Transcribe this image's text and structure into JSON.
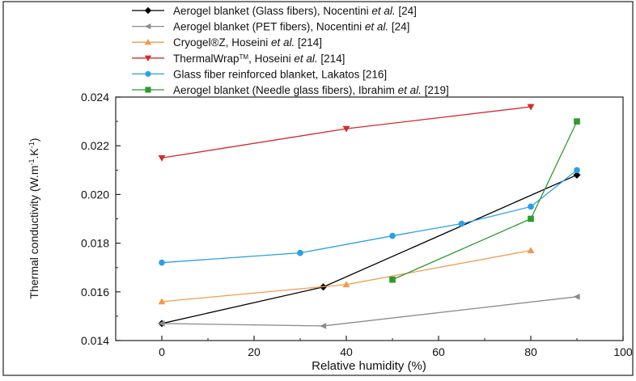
{
  "chart_data": {
    "type": "line",
    "xlabel": "Relative humidity (%)",
    "ylabel": "Thermal conductivity (W.m",
    "ylabel_sup1": "-1",
    "ylabel_mid": ".K",
    "ylabel_sup2": "-1",
    "ylabel_end": ")",
    "xlim": [
      -10,
      100
    ],
    "ylim": [
      0.014,
      0.024
    ],
    "xticks": [
      0,
      20,
      40,
      60,
      80,
      100
    ],
    "xtick_labels": [
      "0",
      "20",
      "40",
      "60",
      "80",
      "100"
    ],
    "yticks": [
      0.014,
      0.016,
      0.018,
      0.02,
      0.022,
      0.024
    ],
    "ytick_labels": [
      "0.014",
      "0.016",
      "0.018",
      "0.020",
      "0.022",
      "0.024"
    ],
    "grid": false,
    "legend_position": "top-left, above plot",
    "series": [
      {
        "name_parts": [
          {
            "t": "Aerogel blanket (Glass fibers), Nocentini "
          },
          {
            "t": "et al.",
            "i": true
          },
          {
            "t": " [24]"
          }
        ],
        "color": "#000000",
        "marker": "diamond",
        "x": [
          0,
          35,
          90
        ],
        "y": [
          0.0147,
          0.0162,
          0.0208
        ]
      },
      {
        "name_parts": [
          {
            "t": "Aerogel blanket (PET fibers), Nocentini "
          },
          {
            "t": "et al.",
            "i": true
          },
          {
            "t": " [24]"
          }
        ],
        "color": "#8c8c8c",
        "marker": "triangle-left",
        "x": [
          0,
          35,
          90
        ],
        "y": [
          0.0147,
          0.0146,
          0.0158
        ]
      },
      {
        "name_parts": [
          {
            "t": "Cryogel®Z, Hoseini "
          },
          {
            "t": "et al.",
            "i": true
          },
          {
            "t": " [214]"
          }
        ],
        "color": "#f39a4c",
        "marker": "triangle-up",
        "x": [
          0,
          40,
          80
        ],
        "y": [
          0.0156,
          0.0163,
          0.0177
        ]
      },
      {
        "name_parts": [
          {
            "t": "ThermalWrap"
          },
          {
            "t": "TM",
            "sup": true
          },
          {
            "t": ", Hoseini "
          },
          {
            "t": "et al.",
            "i": true
          },
          {
            "t": " [214]"
          }
        ],
        "color": "#d42a2a",
        "marker": "triangle-down",
        "x": [
          0,
          40,
          80
        ],
        "y": [
          0.0215,
          0.0227,
          0.0236
        ]
      },
      {
        "name_parts": [
          {
            "t": "Glass fiber reinforced blanket, Lakatos [216]"
          }
        ],
        "color": "#2a9fe8",
        "marker": "circle",
        "x": [
          0,
          30,
          50,
          65,
          80,
          90
        ],
        "y": [
          0.0172,
          0.0176,
          0.0183,
          0.0188,
          0.0195,
          0.021
        ]
      },
      {
        "name_parts": [
          {
            "t": "Aerogel blanket (Needle glass fibers), Ibrahim "
          },
          {
            "t": "et al.",
            "i": true
          },
          {
            "t": " [219]"
          }
        ],
        "color": "#2f9a2f",
        "marker": "square",
        "x": [
          50,
          80,
          90
        ],
        "y": [
          0.0165,
          0.019,
          0.023
        ]
      }
    ]
  }
}
